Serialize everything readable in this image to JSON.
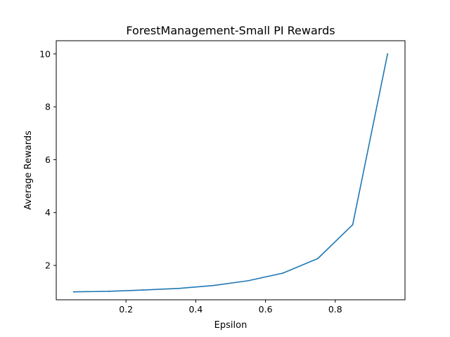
{
  "chart_data": {
    "type": "line",
    "title": "ForestManagement-Small PI Rewards",
    "xlabel": "Epsilon",
    "ylabel": "Average Rewards",
    "xlim": [
      0.0,
      1.0
    ],
    "ylim": [
      0.7,
      10.5
    ],
    "xticks": [
      0.2,
      0.4,
      0.6,
      0.8
    ],
    "yticks": [
      2,
      4,
      6,
      8,
      10
    ],
    "xtick_labels": [
      "0.2",
      "0.4",
      "0.6",
      "0.8"
    ],
    "ytick_labels": [
      "2",
      "4",
      "6",
      "8",
      "10"
    ],
    "grid": false,
    "series": [
      {
        "color": "#1f77b4",
        "x": [
          0.05,
          0.15,
          0.25,
          0.35,
          0.45,
          0.55,
          0.65,
          0.75,
          0.85,
          0.95
        ],
        "y": [
          1.0,
          1.02,
          1.07,
          1.13,
          1.24,
          1.42,
          1.71,
          2.26,
          3.54,
          10.0
        ]
      }
    ]
  }
}
